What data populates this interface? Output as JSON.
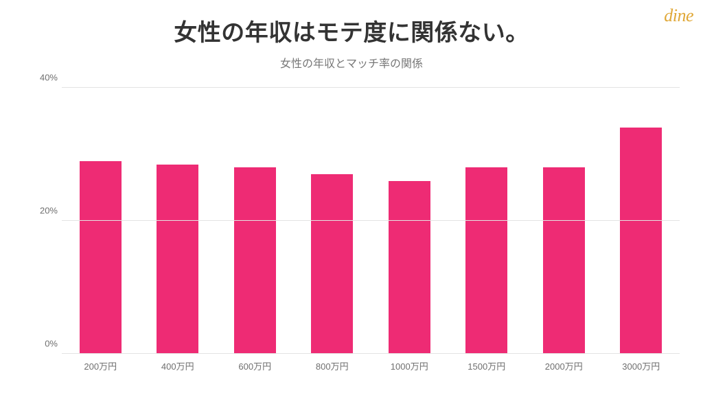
{
  "logo": {
    "text": "dine",
    "color": "#e0a838",
    "fontsize": 26
  },
  "background_color": "#ffffff",
  "title": {
    "text": "女性の年収はモテ度に関係ない。",
    "color": "#333333",
    "fontsize": 34,
    "fontweight": 700
  },
  "subtitle": {
    "text": "女性の年収とマッチ率の関係",
    "color": "#777777",
    "fontsize": 16,
    "fontweight": 400
  },
  "chart": {
    "type": "bar",
    "categories": [
      "200万円",
      "400万円",
      "600万円",
      "800万円",
      "1000万円",
      "1500万円",
      "2000万円",
      "3000万円"
    ],
    "values": [
      29,
      28.5,
      28,
      27,
      26,
      28,
      28,
      34
    ],
    "bar_color": "#ee2b74",
    "ylim": [
      0,
      40
    ],
    "ytick_step": 20,
    "ytick_labels": [
      "0%",
      "20%",
      "40%"
    ],
    "ytick_positions": [
      0,
      20,
      40
    ],
    "grid_color": "#e3e3e3",
    "axis_label_color": "#6f6f6f",
    "axis_label_fontsize": 13,
    "baseline_color": "#bdbdbd",
    "bar_width": 0.54
  }
}
